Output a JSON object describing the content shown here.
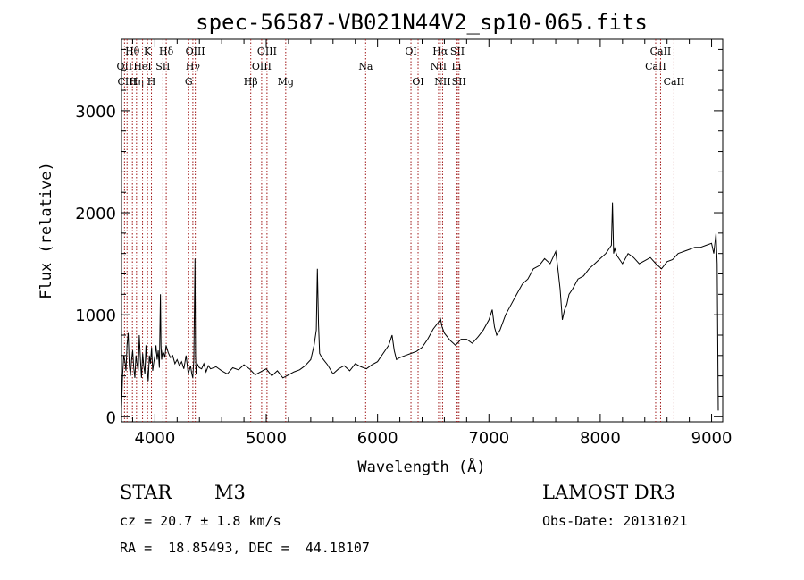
{
  "chart_data": {
    "type": "line",
    "title": "spec-56587-VB021N44V2_sp10-065.fits",
    "xlabel": "Wavelength (Å)",
    "ylabel": "Flux (relative)",
    "xlim": [
      3700,
      9100
    ],
    "ylim": [
      -50,
      3700
    ],
    "x_ticks": [
      4000,
      5000,
      6000,
      7000,
      8000,
      9000
    ],
    "y_ticks": [
      0,
      1000,
      2000,
      3000
    ],
    "grid": false,
    "series": [
      {
        "x": [
          3700,
          3710,
          3720,
          3730,
          3740,
          3750,
          3760,
          3770,
          3780,
          3790,
          3800,
          3810,
          3820,
          3830,
          3840,
          3850,
          3860,
          3870,
          3880,
          3890,
          3900,
          3910,
          3920,
          3930,
          3940,
          3950,
          3960,
          3970,
          3980,
          3990,
          4000,
          4010,
          4020,
          4030,
          4040,
          4050,
          4055,
          4060,
          4070,
          4080,
          4090,
          4100,
          4120,
          4140,
          4160,
          4180,
          4200,
          4220,
          4240,
          4260,
          4280,
          4300,
          4320,
          4330,
          4340,
          4350,
          4360,
          4365,
          4370,
          4380,
          4400,
          4420,
          4440,
          4460,
          4480,
          4500,
          4550,
          4600,
          4650,
          4700,
          4750,
          4800,
          4850,
          4900,
          4950,
          5000,
          5050,
          5100,
          5150,
          5200,
          5250,
          5300,
          5350,
          5400,
          5430,
          5450,
          5460,
          5470,
          5480,
          5500,
          5550,
          5600,
          5650,
          5700,
          5750,
          5800,
          5850,
          5900,
          5950,
          6000,
          6050,
          6100,
          6130,
          6150,
          6170,
          6200,
          6250,
          6300,
          6350,
          6400,
          6450,
          6500,
          6550,
          6565,
          6580,
          6600,
          6650,
          6700,
          6750,
          6800,
          6850,
          6900,
          6950,
          7000,
          7030,
          7050,
          7070,
          7100,
          7150,
          7200,
          7250,
          7300,
          7350,
          7400,
          7450,
          7500,
          7550,
          7600,
          7620,
          7640,
          7660,
          7680,
          7700,
          7720,
          7750,
          7800,
          7850,
          7900,
          7950,
          8000,
          8050,
          8100,
          8110,
          8120,
          8130,
          8150,
          8200,
          8250,
          8300,
          8350,
          8400,
          8450,
          8500,
          8550,
          8600,
          8650,
          8700,
          8750,
          8800,
          8850,
          8900,
          8950,
          9000,
          9020,
          9040,
          9050,
          9060
        ],
        "y": [
          80,
          400,
          600,
          550,
          450,
          700,
          820,
          500,
          400,
          550,
          650,
          480,
          380,
          600,
          520,
          450,
          800,
          560,
          380,
          620,
          500,
          420,
          700,
          480,
          350,
          600,
          520,
          680,
          450,
          530,
          600,
          700,
          560,
          650,
          480,
          1200,
          700,
          560,
          640,
          620,
          580,
          700,
          630,
          580,
          600,
          520,
          560,
          500,
          540,
          470,
          600,
          420,
          500,
          430,
          380,
          560,
          1550,
          600,
          420,
          520,
          480,
          470,
          520,
          440,
          500,
          470,
          490,
          450,
          420,
          480,
          460,
          510,
          470,
          410,
          440,
          470,
          400,
          450,
          380,
          410,
          440,
          460,
          500,
          560,
          700,
          850,
          1450,
          900,
          620,
          580,
          510,
          420,
          470,
          500,
          450,
          520,
          490,
          470,
          510,
          540,
          620,
          700,
          800,
          650,
          560,
          580,
          600,
          620,
          640,
          680,
          760,
          860,
          930,
          960,
          880,
          820,
          750,
          700,
          760,
          760,
          720,
          780,
          850,
          950,
          1050,
          880,
          800,
          850,
          1000,
          1100,
          1200,
          1300,
          1350,
          1450,
          1480,
          1550,
          1500,
          1620,
          1450,
          1250,
          950,
          1050,
          1100,
          1200,
          1250,
          1350,
          1380,
          1450,
          1500,
          1550,
          1600,
          1680,
          2100,
          1600,
          1650,
          1580,
          1500,
          1600,
          1560,
          1500,
          1530,
          1560,
          1500,
          1450,
          1520,
          1540,
          1600,
          1620,
          1640,
          1660,
          1660,
          1680,
          1700,
          1600,
          1800,
          1500,
          60
        ]
      }
    ],
    "lines": [
      {
        "wl": 3727,
        "label": "OII",
        "row": 1
      },
      {
        "wl": 3750,
        "label": "CIII",
        "row": 2
      },
      {
        "wl": 3798,
        "label": "Hθ",
        "row": 0
      },
      {
        "wl": 3835,
        "label": "Hη",
        "row": 2
      },
      {
        "wl": 3889,
        "label": "HeI",
        "row": 1
      },
      {
        "wl": 3934,
        "label": "K",
        "row": 0
      },
      {
        "wl": 3969,
        "label": "H",
        "row": 2
      },
      {
        "wl": 4072,
        "label": "SII",
        "row": 1
      },
      {
        "wl": 4102,
        "label": "Hδ",
        "row": 0
      },
      {
        "wl": 4304,
        "label": "G",
        "row": 2
      },
      {
        "wl": 4341,
        "label": "Hγ",
        "row": 1
      },
      {
        "wl": 4363,
        "label": "OIII",
        "row": 0
      },
      {
        "wl": 4861,
        "label": "Hβ",
        "row": 2
      },
      {
        "wl": 4959,
        "label": "OIII",
        "row": 1
      },
      {
        "wl": 5007,
        "label": "OIII",
        "row": 0
      },
      {
        "wl": 5175,
        "label": "Mg",
        "row": 2
      },
      {
        "wl": 5893,
        "label": "Na",
        "row": 1
      },
      {
        "wl": 6300,
        "label": "OI",
        "row": 0
      },
      {
        "wl": 6364,
        "label": "OI",
        "row": 2
      },
      {
        "wl": 6548,
        "label": "NII",
        "row": 1
      },
      {
        "wl": 6563,
        "label": "Hα",
        "row": 0
      },
      {
        "wl": 6584,
        "label": "NII",
        "row": 2
      },
      {
        "wl": 6708,
        "label": "Li",
        "row": 1
      },
      {
        "wl": 6717,
        "label": "SII",
        "row": 0
      },
      {
        "wl": 6731,
        "label": "SII",
        "row": 2
      },
      {
        "wl": 8498,
        "label": "CaII",
        "row": 1
      },
      {
        "wl": 8542,
        "label": "CaII",
        "row": 0
      },
      {
        "wl": 8662,
        "label": "CaII",
        "row": 2
      }
    ]
  },
  "info": {
    "object_class": "STAR",
    "subclass": "M3",
    "survey": "LAMOST DR3",
    "cz": "cz = 20.7 ± 1.8 km/s",
    "obs_date": "Obs-Date: 20131021",
    "radec": "RA =  18.85493, DEC =  44.18107"
  },
  "colors": {
    "spectrum": "#000000",
    "line_marker": "#a01818",
    "axes": "#000000"
  }
}
